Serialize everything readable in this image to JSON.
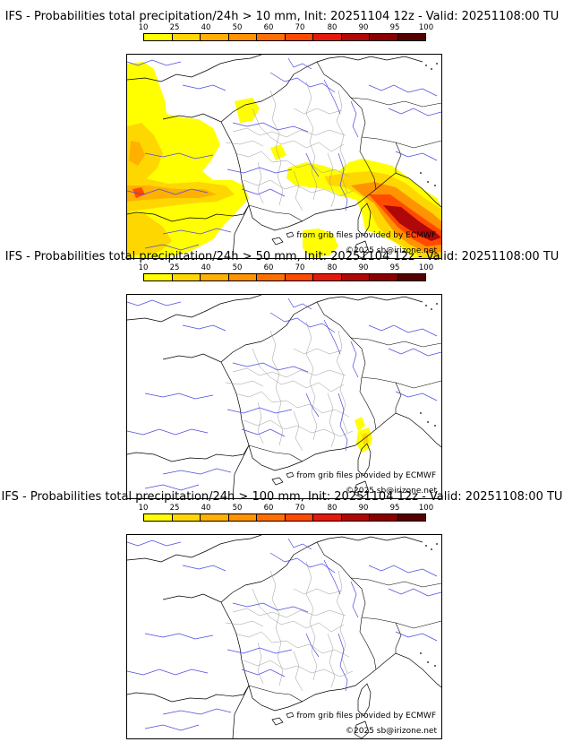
{
  "panels": [
    {
      "title": "IFS - Probabilities total precipitation/24h > 10 mm, Init: 20251104 12z - Valid: 20251108:00 TU",
      "credit_source": "from grib files provided by ECMWF",
      "credit_copyright": "©2025 sb@irizone.net"
    },
    {
      "title": "IFS - Probabilities total precipitation/24h > 50 mm, Init: 20251104 12z - Valid: 20251108:00 TU",
      "credit_source": "from grib files provided by ECMWF",
      "credit_copyright": "©2025 sb@irizone.net"
    },
    {
      "title": "IFS - Probabilities total precipitation/24h > 100 mm, Init: 20251104 12z - Valid: 20251108:00 TU",
      "credit_source": "from grib files provided by ECMWF",
      "credit_copyright": "©2025 sb@irizone.net"
    }
  ],
  "legend": {
    "ticks": [
      "10",
      "25",
      "40",
      "50",
      "60",
      "70",
      "80",
      "90",
      "95",
      "100"
    ],
    "colors": [
      "#ffff00",
      "#ffd700",
      "#ffb000",
      "#ff9400",
      "#ff7000",
      "#ff4a00",
      "#e41a0c",
      "#b00808",
      "#8a0000",
      "#560000"
    ]
  },
  "colors": {
    "rivers": "#4a4ae0",
    "borders": "#000000",
    "regions": "#9a9a9a"
  }
}
